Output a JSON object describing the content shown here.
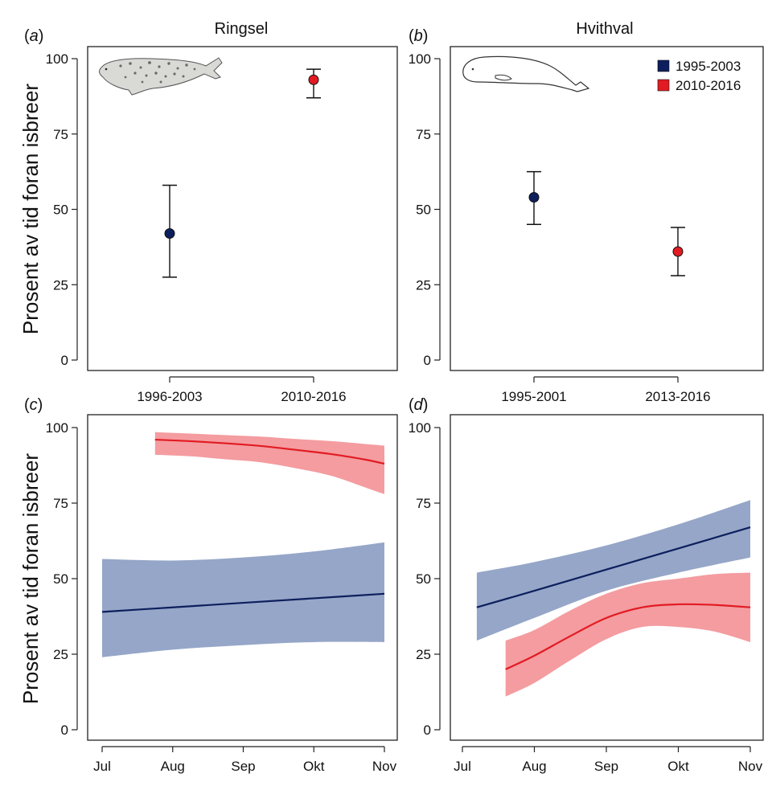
{
  "figure": {
    "ylabel_top": "Prosent av tid foran isbreer",
    "ylabel_bottom": "Prosent av tid foran isbreer"
  },
  "colors": {
    "early": "#0d1f5c",
    "late": "#e21b23",
    "early_band": "#95a6c8",
    "late_band": "#f49ca0",
    "axis": "#222222"
  },
  "legend": {
    "items": [
      {
        "label": "1995-2003",
        "color": "#0d1f5c"
      },
      {
        "label": "2010-2016",
        "color": "#e21b23"
      }
    ]
  },
  "panels": {
    "a": {
      "letter_open": "(",
      "letter": "a",
      "letter_close": ")",
      "title": "Ringsel",
      "icon": "ringed-seal-icon"
    },
    "b": {
      "letter_open": "(",
      "letter": "b",
      "letter_close": ")",
      "title": "Hvithval",
      "icon": "beluga-whale-icon"
    },
    "c": {
      "letter_open": "(",
      "letter": "c",
      "letter_close": ")"
    },
    "d": {
      "letter_open": "(",
      "letter": "d",
      "letter_close": ")"
    }
  },
  "chart_data": [
    {
      "id": "a",
      "type": "scatter",
      "title": "Ringsel",
      "ylabel": "Prosent av tid foran isbreer",
      "ylim": [
        0,
        100
      ],
      "yticks": [
        0,
        25,
        50,
        75,
        100
      ],
      "categories": [
        "1996-2003",
        "2010-2016"
      ],
      "points": [
        {
          "category": "1996-2003",
          "value": 42,
          "lower": 27.5,
          "upper": 58,
          "period": "early"
        },
        {
          "category": "2010-2016",
          "value": 93,
          "lower": 87,
          "upper": 96.5,
          "period": "late"
        }
      ]
    },
    {
      "id": "b",
      "type": "scatter",
      "title": "Hvithval",
      "ylim": [
        0,
        100
      ],
      "yticks": [
        0,
        25,
        50,
        75,
        100
      ],
      "categories": [
        "1995-2001",
        "2013-2016"
      ],
      "points": [
        {
          "category": "1995-2001",
          "value": 54,
          "lower": 45,
          "upper": 62.5,
          "period": "early"
        },
        {
          "category": "2013-2016",
          "value": 36,
          "lower": 28,
          "upper": 44,
          "period": "late"
        }
      ]
    },
    {
      "id": "c",
      "type": "line",
      "ylabel": "Prosent av tid foran isbreer",
      "ylim": [
        0,
        100
      ],
      "yticks": [
        0,
        25,
        50,
        75,
        100
      ],
      "xlim": [
        7,
        11
      ],
      "xticks": [
        7,
        8,
        9,
        10,
        11
      ],
      "xticklabels": [
        "Jul",
        "Aug",
        "Sep",
        "Okt",
        "Nov"
      ],
      "series": [
        {
          "name": "1995-2003",
          "period": "early",
          "x": [
            7,
            8,
            9,
            10,
            11
          ],
          "fit": [
            39,
            40.5,
            42,
            43.5,
            45
          ],
          "lower": [
            24,
            26.5,
            28,
            29,
            29
          ],
          "upper": [
            56.5,
            56,
            57,
            59,
            62
          ]
        },
        {
          "name": "2010-2016",
          "period": "late",
          "x": [
            7.75,
            8.25,
            8.75,
            9.25,
            9.75,
            10.25,
            10.75,
            11
          ],
          "fit": [
            96,
            95.5,
            94.8,
            93.9,
            92.6,
            91.2,
            89.3,
            88
          ],
          "lower": [
            91,
            90.5,
            89.5,
            88.5,
            86.5,
            84,
            80,
            78
          ],
          "upper": [
            98.5,
            98,
            97.5,
            97,
            96.2,
            95.5,
            94.5,
            94
          ]
        }
      ]
    },
    {
      "id": "d",
      "type": "line",
      "ylim": [
        0,
        100
      ],
      "yticks": [
        0,
        25,
        50,
        75,
        100
      ],
      "xlim": [
        7,
        11
      ],
      "xticks": [
        7,
        8,
        9,
        10,
        11
      ],
      "xticklabels": [
        "Jul",
        "Aug",
        "Sep",
        "Okt",
        "Nov"
      ],
      "series": [
        {
          "name": "1995-2003",
          "period": "early",
          "x": [
            7.2,
            8,
            9,
            10,
            11
          ],
          "fit": [
            40.5,
            46,
            53,
            60,
            67
          ],
          "lower": [
            29.5,
            37,
            46,
            52,
            57
          ],
          "upper": [
            52,
            55.5,
            61,
            68,
            76
          ]
        },
        {
          "name": "2010-2016",
          "period": "late",
          "x": [
            7.6,
            8,
            8.5,
            9,
            9.5,
            10,
            10.5,
            11
          ],
          "fit": [
            20,
            24.5,
            31,
            37,
            40.5,
            41.5,
            41.3,
            40.5
          ],
          "lower": [
            11,
            15.5,
            23,
            30,
            34,
            34,
            32.5,
            29
          ],
          "upper": [
            29.5,
            33,
            39.5,
            45,
            48.5,
            50,
            51.5,
            52
          ]
        }
      ]
    }
  ]
}
